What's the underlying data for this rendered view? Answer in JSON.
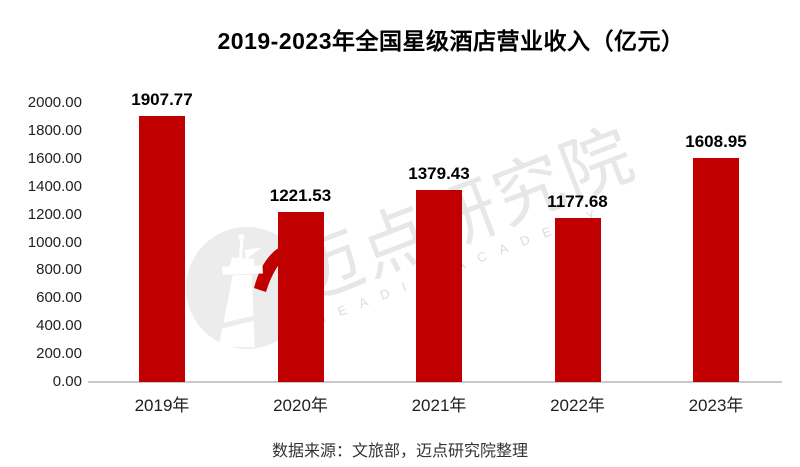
{
  "page": {
    "background": "#ffffff"
  },
  "header": {
    "title": "2019-2023年全国星级酒店营业收入（亿元）"
  },
  "footer": {
    "source_note": "数据来源：文旅部，迈点研究院整理"
  },
  "watermark": {
    "text_cn": "迈点研究院",
    "text_en": "MEADIN ACADEMY",
    "circle_color": "#ececec",
    "cn_text_color": "#e7e7e7",
    "en_text_color": "#dcdcdc",
    "tower_color": "#ffffff",
    "accent_color": "#c00000"
  },
  "chart_data": {
    "type": "bar",
    "title": "2019-2023年全国星级酒店营业收入（亿元）",
    "categories": [
      "2019年",
      "2020年",
      "2021年",
      "2022年",
      "2023年"
    ],
    "values": [
      1907.77,
      1221.53,
      1379.43,
      1177.68,
      1608.95
    ],
    "data_labels": [
      "1907.77",
      "1221.53",
      "1379.43",
      "1177.68",
      "1608.95"
    ],
    "xlabel": "",
    "ylabel": "",
    "ylim": [
      0,
      2000
    ],
    "y_tick_values": [
      0,
      200,
      400,
      600,
      800,
      1000,
      1200,
      1400,
      1600,
      1800,
      2000
    ],
    "y_ticks": [
      "0.00",
      "200.00",
      "400.00",
      "600.00",
      "800.00",
      "1000.00",
      "1200.00",
      "1400.00",
      "1600.00",
      "1800.00",
      "2000.00"
    ],
    "bar_color": "#c00000",
    "axis_color": "#c9c9c9",
    "grid": false,
    "legend": false
  }
}
